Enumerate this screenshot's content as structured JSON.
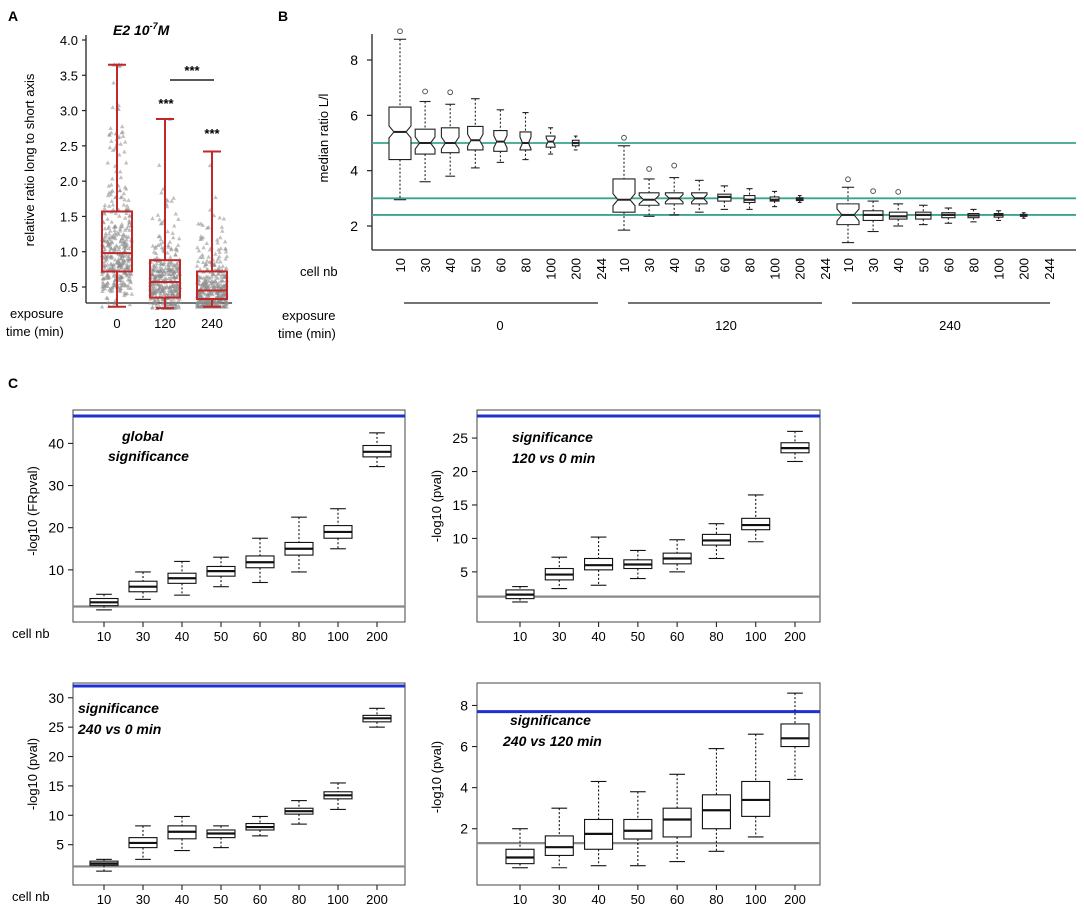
{
  "panels": {
    "A": {
      "letter": "A",
      "title_main": "E2 10",
      "title_sup": "-7",
      "title_end": "M",
      "ylabel": "relative ratio long to short axis",
      "xrow_label_1": "exposure",
      "xrow_label_2": "time (min)",
      "sig_marks": [
        "***",
        "***",
        "***"
      ]
    },
    "B": {
      "letter": "B",
      "ylabel": "median ratio L/l",
      "cell_label": "cell nb",
      "exp_label_1": "exposure",
      "exp_label_2": "time (min)",
      "groups": [
        "0",
        "120",
        "240"
      ],
      "cell_ticks": [
        "10",
        "30",
        "40",
        "50",
        "60",
        "80",
        "100",
        "200",
        "244"
      ]
    },
    "C": {
      "letter": "C",
      "cell_label": "cell nb"
    }
  },
  "chart_data": [
    {
      "id": "A",
      "type": "box",
      "title": "E2 10-7M",
      "ylabel": "relative ratio long to short axis",
      "xlabel": "exposure time (min)",
      "categories": [
        "0",
        "120",
        "240"
      ],
      "ylim": [
        0.15,
        4.0
      ],
      "yticks": [
        "0.5",
        "1.0",
        "1.5",
        "2.0",
        "2.5",
        "3.0",
        "3.5",
        "4.0"
      ],
      "boxes": [
        {
          "category": "0",
          "min": 0.22,
          "q1": 0.72,
          "median": 0.98,
          "q3": 1.57,
          "max": 3.65
        },
        {
          "category": "120",
          "min": 0.2,
          "q1": 0.35,
          "median": 0.57,
          "q3": 0.88,
          "max": 2.88
        },
        {
          "category": "240",
          "min": 0.22,
          "q1": 0.33,
          "median": 0.45,
          "q3": 0.72,
          "max": 2.42
        }
      ],
      "annotations": [
        "*** (120 vs 0)",
        "*** (240 vs 0)",
        "*** (120 vs 240)"
      ],
      "box_color": "#c0282a",
      "point_color": "#888888"
    },
    {
      "id": "B",
      "type": "box",
      "ylabel": "median ratio L/l",
      "xlabel": "cell nb / exposure time (min)",
      "ylim": [
        1.2,
        9.0
      ],
      "yticks": [
        "2",
        "4",
        "6",
        "8"
      ],
      "reference_lines": [
        5.0,
        3.0,
        2.4
      ],
      "reference_color": "#3aa58f",
      "groups": [
        {
          "exposure": "0",
          "boxes": [
            {
              "cell_nb": "10",
              "min": 2.95,
              "q1": 4.4,
              "median": 5.4,
              "q3": 6.3,
              "max": 8.75
            },
            {
              "cell_nb": "30",
              "min": 3.6,
              "q1": 4.6,
              "median": 5.0,
              "q3": 5.5,
              "max": 6.5
            },
            {
              "cell_nb": "40",
              "min": 3.8,
              "q1": 4.65,
              "median": 5.0,
              "q3": 5.55,
              "max": 6.4
            },
            {
              "cell_nb": "50",
              "min": 4.1,
              "q1": 4.75,
              "median": 5.1,
              "q3": 5.6,
              "max": 6.6
            },
            {
              "cell_nb": "60",
              "min": 4.3,
              "q1": 4.7,
              "median": 5.05,
              "q3": 5.45,
              "max": 6.2
            },
            {
              "cell_nb": "80",
              "min": 4.4,
              "q1": 4.75,
              "median": 5.0,
              "q3": 5.4,
              "max": 6.1
            },
            {
              "cell_nb": "100",
              "min": 4.6,
              "q1": 4.85,
              "median": 5.05,
              "q3": 5.25,
              "max": 5.55
            },
            {
              "cell_nb": "200",
              "min": 4.75,
              "q1": 4.9,
              "median": 5.0,
              "q3": 5.1,
              "max": 5.25
            },
            {
              "cell_nb": "244",
              "min": 5.0,
              "q1": 5.0,
              "median": 5.0,
              "q3": 5.0,
              "max": 5.0
            }
          ]
        },
        {
          "exposure": "120",
          "boxes": [
            {
              "cell_nb": "10",
              "min": 1.85,
              "q1": 2.5,
              "median": 2.95,
              "q3": 3.7,
              "max": 4.9
            },
            {
              "cell_nb": "30",
              "min": 2.35,
              "q1": 2.75,
              "median": 2.95,
              "q3": 3.2,
              "max": 3.7
            },
            {
              "cell_nb": "40",
              "min": 2.4,
              "q1": 2.8,
              "median": 3.0,
              "q3": 3.2,
              "max": 3.75
            },
            {
              "cell_nb": "50",
              "min": 2.5,
              "q1": 2.8,
              "median": 3.0,
              "q3": 3.2,
              "max": 3.65
            },
            {
              "cell_nb": "60",
              "min": 2.6,
              "q1": 2.9,
              "median": 3.05,
              "q3": 3.15,
              "max": 3.45
            },
            {
              "cell_nb": "80",
              "min": 2.6,
              "q1": 2.85,
              "median": 2.95,
              "q3": 3.1,
              "max": 3.35
            },
            {
              "cell_nb": "100",
              "min": 2.7,
              "q1": 2.9,
              "median": 2.95,
              "q3": 3.05,
              "max": 3.25
            },
            {
              "cell_nb": "200",
              "min": 2.85,
              "q1": 2.92,
              "median": 2.97,
              "q3": 3.02,
              "max": 3.1
            },
            {
              "cell_nb": "244",
              "min": 3.0,
              "q1": 3.0,
              "median": 3.0,
              "q3": 3.0,
              "max": 3.0
            }
          ]
        },
        {
          "exposure": "240",
          "boxes": [
            {
              "cell_nb": "10",
              "min": 1.4,
              "q1": 2.05,
              "median": 2.4,
              "q3": 2.8,
              "max": 3.4
            },
            {
              "cell_nb": "30",
              "min": 1.8,
              "q1": 2.2,
              "median": 2.4,
              "q3": 2.55,
              "max": 2.9
            },
            {
              "cell_nb": "40",
              "min": 2.0,
              "q1": 2.25,
              "median": 2.35,
              "q3": 2.5,
              "max": 2.8
            },
            {
              "cell_nb": "50",
              "min": 2.05,
              "q1": 2.25,
              "median": 2.4,
              "q3": 2.5,
              "max": 2.75
            },
            {
              "cell_nb": "60",
              "min": 2.1,
              "q1": 2.3,
              "median": 2.4,
              "q3": 2.48,
              "max": 2.65
            },
            {
              "cell_nb": "80",
              "min": 2.15,
              "q1": 2.3,
              "median": 2.38,
              "q3": 2.45,
              "max": 2.6
            },
            {
              "cell_nb": "100",
              "min": 2.2,
              "q1": 2.32,
              "median": 2.4,
              "q3": 2.45,
              "max": 2.55
            },
            {
              "cell_nb": "200",
              "min": 2.28,
              "q1": 2.35,
              "median": 2.38,
              "q3": 2.42,
              "max": 2.48
            },
            {
              "cell_nb": "244",
              "min": 2.4,
              "q1": 2.4,
              "median": 2.4,
              "q3": 2.4,
              "max": 2.4
            }
          ]
        }
      ]
    },
    {
      "id": "C1",
      "type": "box",
      "title": "global significance",
      "title_lines": [
        "global",
        "significance"
      ],
      "ylabel": "-log10 (FRpval)",
      "xlabel": "cell nb",
      "categories": [
        "10",
        "30",
        "40",
        "50",
        "60",
        "80",
        "100",
        "200"
      ],
      "ylim": [
        -1,
        48
      ],
      "yticks": [
        "10",
        "20",
        "30",
        "40"
      ],
      "ref_blue": 46.5,
      "ref_gray": 1.3,
      "boxes": [
        {
          "min": 0.5,
          "q1": 1.5,
          "median": 2.3,
          "q3": 3.2,
          "max": 4.2
        },
        {
          "min": 3,
          "q1": 4.8,
          "median": 6.0,
          "q3": 7.3,
          "max": 9.5
        },
        {
          "min": 4,
          "q1": 6.8,
          "median": 8.0,
          "q3": 9.2,
          "max": 12
        },
        {
          "min": 6,
          "q1": 8.5,
          "median": 9.7,
          "q3": 10.8,
          "max": 13
        },
        {
          "min": 7,
          "q1": 10.5,
          "median": 11.8,
          "q3": 13.3,
          "max": 17.5
        },
        {
          "min": 9.5,
          "q1": 13.5,
          "median": 15.0,
          "q3": 16.5,
          "max": 22.5
        },
        {
          "min": 15,
          "q1": 17.5,
          "median": 19.0,
          "q3": 20.5,
          "max": 24.5
        },
        {
          "min": 34.5,
          "q1": 36.8,
          "median": 38.0,
          "q3": 39.5,
          "max": 42.5
        }
      ]
    },
    {
      "id": "C2",
      "type": "box",
      "title": "significance 120 vs 0 min",
      "title_lines": [
        "significance",
        "120 vs 0 min"
      ],
      "ylabel": "-log10 (pval)",
      "xlabel": "cell nb",
      "categories": [
        "10",
        "30",
        "40",
        "50",
        "60",
        "80",
        "100",
        "200"
      ],
      "ylim": [
        -1,
        29
      ],
      "yticks": [
        "5",
        "10",
        "15",
        "20",
        "25"
      ],
      "ref_blue": 28.3,
      "ref_gray": 1.3,
      "boxes": [
        {
          "min": 0.5,
          "q1": 1.0,
          "median": 1.6,
          "q3": 2.3,
          "max": 2.8
        },
        {
          "min": 2.5,
          "q1": 3.8,
          "median": 4.6,
          "q3": 5.5,
          "max": 7.2
        },
        {
          "min": 3,
          "q1": 5.3,
          "median": 6.0,
          "q3": 7.0,
          "max": 10.2
        },
        {
          "min": 4,
          "q1": 5.5,
          "median": 6.1,
          "q3": 6.8,
          "max": 8.2
        },
        {
          "min": 5,
          "q1": 6.2,
          "median": 7.0,
          "q3": 7.8,
          "max": 9.8
        },
        {
          "min": 7,
          "q1": 9.0,
          "median": 9.7,
          "q3": 10.6,
          "max": 12.2
        },
        {
          "min": 9.5,
          "q1": 11.3,
          "median": 12.0,
          "q3": 13.0,
          "max": 16.5
        },
        {
          "min": 21.5,
          "q1": 22.8,
          "median": 23.5,
          "q3": 24.3,
          "max": 26
        }
      ]
    },
    {
      "id": "C3",
      "type": "box",
      "title": "significance 240 vs 0 min",
      "title_lines": [
        "significance",
        "240 vs 0 min"
      ],
      "ylabel": "-log10 (pval)",
      "xlabel": "cell nb",
      "categories": [
        "10",
        "30",
        "40",
        "50",
        "60",
        "80",
        "100",
        "200"
      ],
      "ylim": [
        -1,
        33
      ],
      "yticks": [
        "5",
        "10",
        "15",
        "20",
        "25",
        "30"
      ],
      "ref_blue": 32,
      "ref_gray": 1.3,
      "boxes": [
        {
          "min": 0.5,
          "q1": 1.5,
          "median": 1.8,
          "q3": 2.2,
          "max": 2.5
        },
        {
          "min": 2.5,
          "q1": 4.5,
          "median": 5.3,
          "q3": 6.2,
          "max": 8.2
        },
        {
          "min": 4,
          "q1": 6.0,
          "median": 7.2,
          "q3": 8.2,
          "max": 9.8
        },
        {
          "min": 4.5,
          "q1": 6.2,
          "median": 6.9,
          "q3": 7.5,
          "max": 8.2
        },
        {
          "min": 6.5,
          "q1": 7.5,
          "median": 8.0,
          "q3": 8.6,
          "max": 9.8
        },
        {
          "min": 8.5,
          "q1": 10.2,
          "median": 10.7,
          "q3": 11.2,
          "max": 12.5
        },
        {
          "min": 11,
          "q1": 12.8,
          "median": 13.4,
          "q3": 14.0,
          "max": 15.5
        },
        {
          "min": 25,
          "q1": 25.9,
          "median": 26.5,
          "q3": 27.0,
          "max": 28.2
        }
      ]
    },
    {
      "id": "C4",
      "type": "box",
      "title": "significance 240 vs 120 min",
      "title_lines": [
        "significance",
        "240 vs 120 min"
      ],
      "ylabel": "-log10 (pval)",
      "xlabel": "cell nb",
      "categories": [
        "10",
        "30",
        "40",
        "50",
        "60",
        "80",
        "100",
        "200"
      ],
      "ylim": [
        -0.3,
        8.8
      ],
      "yticks": [
        "2",
        "4",
        "6",
        "8"
      ],
      "ref_blue": 7.7,
      "ref_gray": 1.3,
      "boxes": [
        {
          "min": 0.1,
          "q1": 0.3,
          "median": 0.6,
          "q3": 1.0,
          "max": 2.0
        },
        {
          "min": 0.1,
          "q1": 0.7,
          "median": 1.1,
          "q3": 1.65,
          "max": 3.0
        },
        {
          "min": 0.2,
          "q1": 1.0,
          "median": 1.75,
          "q3": 2.45,
          "max": 4.3
        },
        {
          "min": 0.2,
          "q1": 1.5,
          "median": 1.9,
          "q3": 2.45,
          "max": 3.8
        },
        {
          "min": 0.4,
          "q1": 1.6,
          "median": 2.45,
          "q3": 3.0,
          "max": 4.65
        },
        {
          "min": 0.9,
          "q1": 2.0,
          "median": 2.9,
          "q3": 3.65,
          "max": 5.9
        },
        {
          "min": 1.6,
          "q1": 2.6,
          "median": 3.4,
          "q3": 4.3,
          "max": 6.6
        },
        {
          "min": 4.4,
          "q1": 6.0,
          "median": 6.4,
          "q3": 7.1,
          "max": 8.6
        }
      ]
    }
  ]
}
